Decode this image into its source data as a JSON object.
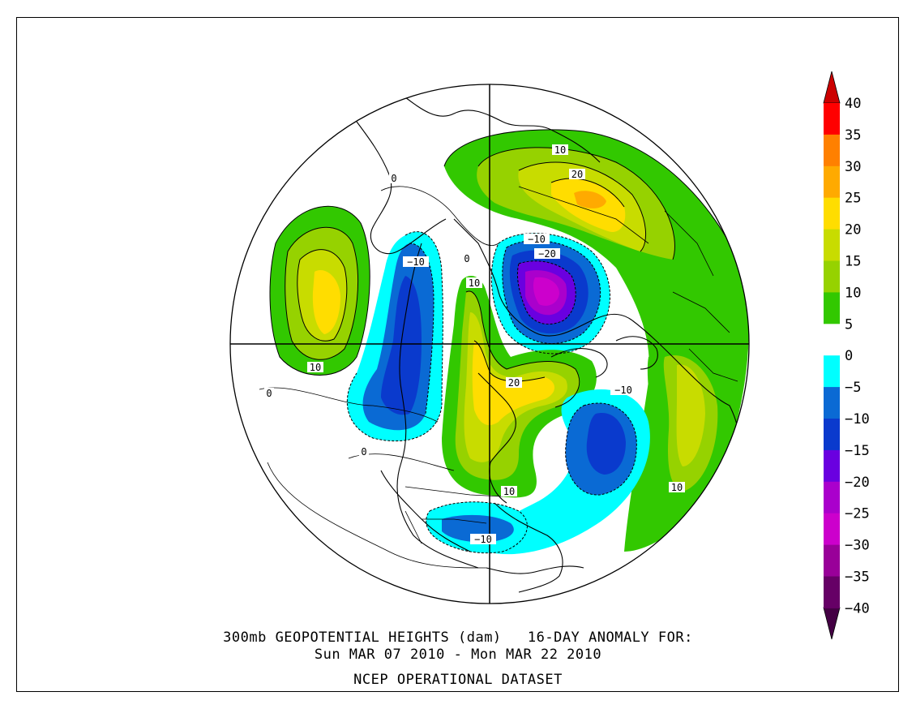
{
  "caption": {
    "line1": "300mb GEOPOTENTIAL HEIGHTS (dam)   16-DAY ANOMALY FOR:",
    "line2": "Sun MAR 07 2010 - Mon MAR 22 2010",
    "line3": "NCEP OPERATIONAL DATASET"
  },
  "colorbar": {
    "levels": [
      "40",
      "35",
      "30",
      "25",
      "20",
      "15",
      "10",
      "5",
      "0",
      "−5",
      "−10",
      "−15",
      "−20",
      "−25",
      "−30",
      "−35",
      "−40"
    ],
    "colors": [
      "#ff0000",
      "#ff8000",
      "#ffaa00",
      "#ffdd00",
      "#c8dc00",
      "#96d200",
      "#32c800",
      "#ffffff",
      "#00ffff",
      "#0a6ad4",
      "#0a3acd",
      "#6a00e0",
      "#aa00cc",
      "#cc00cc",
      "#990099",
      "#660066"
    ],
    "top_arrow_color": "#cc0000",
    "bottom_arrow_color": "#440044"
  },
  "contour_labels": [
    {
      "text": "10",
      "name": "label-10-eurasia"
    },
    {
      "text": "20",
      "name": "label-20-eurasia"
    },
    {
      "text": "−10",
      "name": "label-minus10-arctic"
    },
    {
      "text": "−20",
      "name": "label-minus20-arctic"
    },
    {
      "text": "10",
      "name": "label-10-pacific"
    },
    {
      "text": "−10",
      "name": "label-minus10-west"
    },
    {
      "text": "0",
      "name": "label-0-west"
    },
    {
      "text": "10",
      "name": "label-10-greenland"
    },
    {
      "text": "20",
      "name": "label-20-central"
    },
    {
      "text": "−10",
      "name": "label-minus10-east"
    },
    {
      "text": "10",
      "name": "label-10-southeast"
    },
    {
      "text": "0",
      "name": "label-0-sw-a"
    },
    {
      "text": "0",
      "name": "label-0-sw-b"
    },
    {
      "text": "10",
      "name": "label-10-south"
    },
    {
      "text": "−10",
      "name": "label-minus10-south"
    },
    {
      "text": "0",
      "name": "label-0-nw"
    }
  ]
}
